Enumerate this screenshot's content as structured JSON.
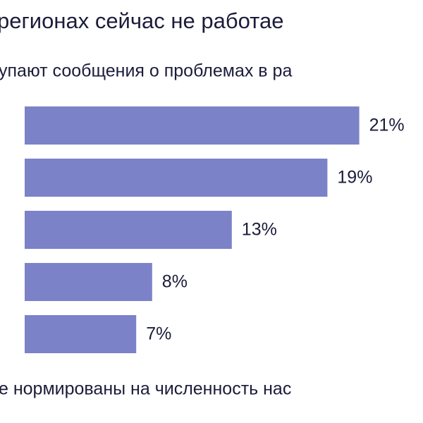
{
  "chart_data": {
    "type": "bar",
    "orientation": "horizontal",
    "title": "регионах сейчас не работае",
    "subtitle": "упают сообщения о проблемах в ра",
    "note": "е нормированы на численность нас",
    "values": [
      21,
      19,
      13,
      8,
      7
    ],
    "value_labels": [
      "21%",
      "19%",
      "13%",
      "8%",
      "7%"
    ],
    "color": "#7b82c8"
  }
}
